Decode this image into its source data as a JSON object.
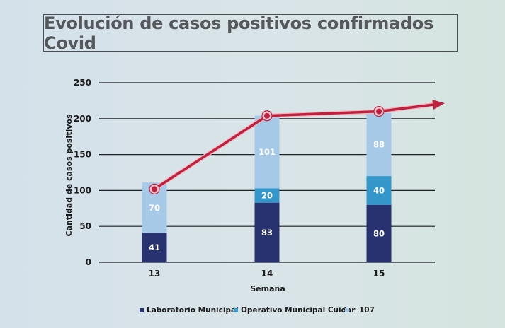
{
  "chart_data": {
    "type": "bar",
    "stacked": true,
    "title": "Evolución de casos positivos confirmados Covid",
    "xlabel": "Semana",
    "ylabel": "Cantidad de casos positivos",
    "categories": [
      "13",
      "14",
      "15"
    ],
    "ylim": [
      0,
      250
    ],
    "yticks": [
      0,
      50,
      100,
      150,
      200,
      250
    ],
    "grid": true,
    "legend_position": "bottom",
    "series": [
      {
        "name": "Laboratorio Municipal",
        "color": "#283271",
        "values": [
          41,
          83,
          80
        ]
      },
      {
        "name": "Operativo Municipal Cuidar",
        "color": "#3597c9",
        "values": [
          0,
          20,
          40
        ]
      },
      {
        "name": "107",
        "color": "#a7c9e8",
        "values": [
          70,
          101,
          88
        ]
      }
    ],
    "trend_line": {
      "color": "#c0203e",
      "values": [
        102,
        204,
        210
      ],
      "arrow": true
    }
  }
}
